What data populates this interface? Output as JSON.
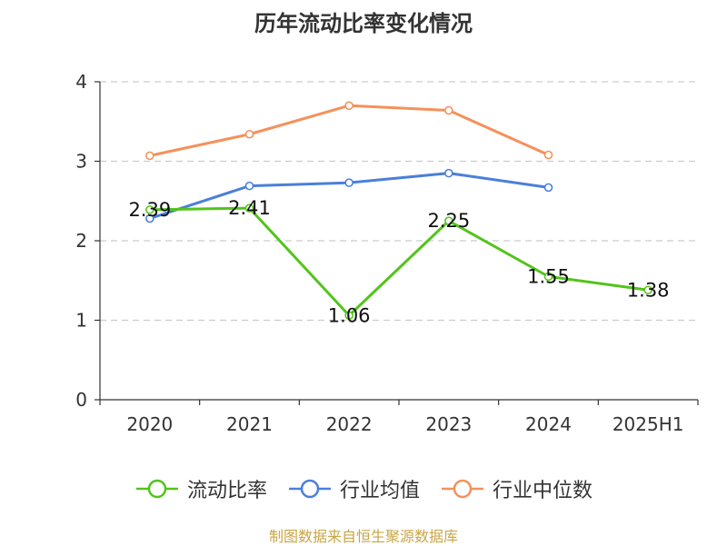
{
  "chart_data": {
    "type": "line",
    "title": "历年流动比率变化情况",
    "categories": [
      "2020",
      "2021",
      "2022",
      "2023",
      "2024",
      "2025H1"
    ],
    "y_ticks": [
      "0",
      "1",
      "2",
      "3",
      "4"
    ],
    "ylim": [
      0,
      4
    ],
    "grid": "horizontal dashed",
    "legend_position": "bottom",
    "series": [
      {
        "name": "流动比率",
        "color": "#52c41a",
        "values": [
          2.39,
          2.41,
          1.06,
          2.25,
          1.55,
          1.38
        ],
        "labels": [
          "2.39",
          "2.41",
          "1.06",
          "2.25",
          "1.55",
          "1.38"
        ]
      },
      {
        "name": "行业均值",
        "color": "#4a7fdb",
        "values": [
          2.28,
          2.69,
          2.73,
          2.85,
          2.67,
          null
        ]
      },
      {
        "name": "行业中位数",
        "color": "#f4915b",
        "values": [
          3.07,
          3.34,
          3.7,
          3.64,
          3.08,
          null
        ]
      }
    ]
  },
  "footer": {
    "source": "制图数据来自恒生聚源数据库"
  }
}
